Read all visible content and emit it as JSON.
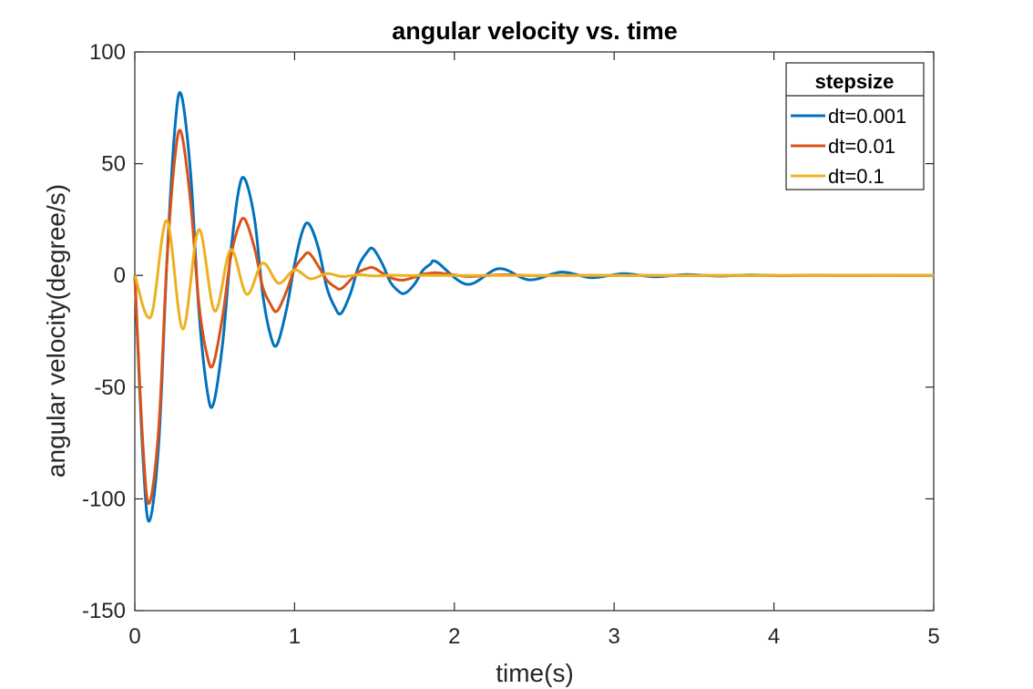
{
  "chart_data": {
    "type": "line",
    "title": "angular velocity vs. time",
    "xlabel": "time(s)",
    "ylabel": "angular velocity(degree/s)",
    "xlim": [
      0,
      5
    ],
    "ylim": [
      -150,
      100
    ],
    "xticks": [
      0,
      1,
      2,
      3,
      4,
      5
    ],
    "xtick_labels": [
      "0",
      "1",
      "2",
      "3",
      "4",
      "5"
    ],
    "yticks": [
      -150,
      -100,
      -50,
      0,
      50,
      100
    ],
    "ytick_labels": [
      "-150",
      "-100",
      "-50",
      "0",
      "50",
      "100"
    ],
    "grid": false,
    "legend": {
      "title": "stepsize",
      "placement": "top-right"
    },
    "series": [
      {
        "name": "dt=0.001",
        "color": "#0072BD",
        "x": [
          0,
          0.05,
          0.09,
          0.15,
          0.2,
          0.25,
          0.29,
          0.35,
          0.4,
          0.45,
          0.49,
          0.55,
          0.6,
          0.65,
          0.69,
          0.75,
          0.8,
          0.85,
          0.89,
          0.95,
          1.0,
          1.05,
          1.09,
          1.15,
          1.2,
          1.25,
          1.29,
          1.35,
          1.4,
          1.45,
          1.49,
          1.55,
          1.6,
          1.65,
          1.69,
          1.75,
          1.8,
          1.85,
          1.89,
          2.08,
          2.28,
          2.47,
          2.67,
          2.86,
          3.06,
          3.25,
          3.45,
          3.65,
          3.85,
          4.05,
          4.25,
          4.45,
          4.65,
          4.85,
          5.0
        ],
        "y": [
          0,
          -80,
          -110,
          -75,
          5,
          65,
          81,
          45,
          -15,
          -50,
          -58,
          -30,
          10,
          38,
          43,
          25,
          -8,
          -27,
          -31,
          -15,
          5,
          20,
          23,
          12,
          -5,
          -14,
          -17,
          -8,
          4,
          10,
          12,
          5,
          -3,
          -7,
          -8,
          -4,
          2,
          5,
          6,
          -4,
          3,
          -2,
          1.5,
          -1,
          0.8,
          -0.6,
          0.4,
          -0.3,
          0.2,
          -0.15,
          0.1,
          -0.05,
          0.05,
          0,
          0
        ]
      },
      {
        "name": "dt=0.01",
        "color": "#D95319",
        "x": [
          0,
          0.05,
          0.09,
          0.15,
          0.2,
          0.25,
          0.29,
          0.35,
          0.4,
          0.45,
          0.49,
          0.55,
          0.6,
          0.65,
          0.69,
          0.75,
          0.8,
          0.85,
          0.89,
          0.95,
          1.0,
          1.05,
          1.09,
          1.15,
          1.2,
          1.25,
          1.29,
          1.35,
          1.4,
          1.45,
          1.49,
          1.55,
          1.6,
          1.65,
          1.69,
          1.75,
          1.8,
          1.85,
          1.89,
          2.0,
          2.1,
          2.3,
          2.5,
          2.7,
          3.0,
          3.5,
          4.0,
          4.5,
          5.0
        ],
        "y": [
          0,
          -75,
          -102,
          -68,
          5,
          52,
          64,
          32,
          -12,
          -35,
          -40,
          -18,
          8,
          22,
          25,
          12,
          -5,
          -13,
          -16,
          -7,
          3,
          8,
          10,
          4,
          -2,
          -5,
          -6,
          -2,
          1.5,
          3,
          3.5,
          1,
          -1,
          -2,
          -2,
          -0.8,
          0.5,
          1,
          1.2,
          0.2,
          -0.5,
          0.3,
          -0.1,
          0.05,
          0,
          0,
          0,
          0,
          0
        ]
      },
      {
        "name": "dt=0.1",
        "color": "#EDB120",
        "x": [
          0,
          0.1,
          0.2,
          0.3,
          0.4,
          0.5,
          0.6,
          0.7,
          0.8,
          0.9,
          1.0,
          1.1,
          1.2,
          1.3,
          1.4,
          1.5,
          1.6,
          1.7,
          1.8,
          1.9,
          2.0,
          2.1,
          2.2,
          2.3,
          2.4,
          2.5,
          2.6,
          2.7,
          2.8,
          2.9,
          3.0,
          3.1,
          3.2,
          3.3,
          3.4,
          3.5,
          3.6,
          3.7,
          3.8,
          3.9,
          4.0,
          4.1,
          4.2,
          4.3,
          4.4,
          4.5,
          4.6,
          4.7,
          4.8,
          4.9,
          5.0
        ],
        "y": [
          0,
          -18.5,
          24.5,
          -24,
          20.5,
          -16,
          11.5,
          -8.5,
          5.5,
          -3.5,
          2.5,
          -1.5,
          0.8,
          -0.5,
          0.3,
          -0.2,
          0.1,
          -0.05,
          0.03,
          0,
          0,
          0,
          0,
          0,
          0,
          0,
          0,
          0,
          0,
          0,
          0,
          0,
          0,
          0,
          0,
          0,
          0,
          0,
          0,
          0,
          0,
          0,
          0,
          0,
          0,
          0,
          0,
          0,
          0,
          0,
          0
        ]
      }
    ]
  }
}
